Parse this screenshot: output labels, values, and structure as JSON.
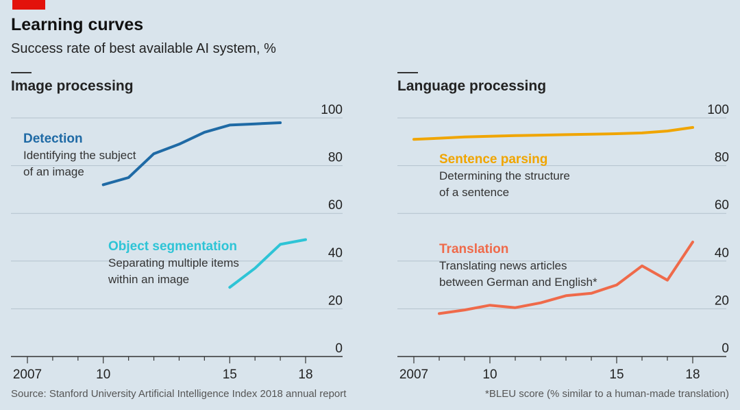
{
  "header": {
    "title": "Learning curves",
    "subtitle": "Success rate of best available AI system, %"
  },
  "footer": {
    "source": "Source: Stanford University Artificial Intelligence Index 2018 annual report",
    "note": "*BLEU score (% similar to a human-made translation)"
  },
  "chart_data": [
    {
      "type": "line",
      "title": "Image processing",
      "x_ticks": [
        {
          "value": 2007,
          "label": "2007"
        },
        {
          "value": 2010,
          "label": "10"
        },
        {
          "value": 2015,
          "label": "15"
        },
        {
          "value": 2018,
          "label": "18"
        }
      ],
      "xlim": [
        2007,
        2018
      ],
      "ylim": [
        0,
        100
      ],
      "y_ticks": [
        0,
        20,
        40,
        60,
        80,
        100
      ],
      "grid": true,
      "series": [
        {
          "name": "Detection",
          "description": [
            "Identifying the subject",
            "of an image"
          ],
          "color": "#1f6aa5",
          "x": [
            2010,
            2011,
            2012,
            2013,
            2014,
            2015,
            2016,
            2017
          ],
          "y": [
            72,
            75,
            85,
            89,
            94,
            97,
            97.5,
            98
          ]
        },
        {
          "name": "Object segmentation",
          "description": [
            "Separating multiple items",
            "within an image"
          ],
          "color": "#2ec4d6",
          "x": [
            2015,
            2016,
            2017,
            2018
          ],
          "y": [
            29,
            37,
            47,
            49
          ]
        }
      ]
    },
    {
      "type": "line",
      "title": "Language processing",
      "x_ticks": [
        {
          "value": 2007,
          "label": "2007"
        },
        {
          "value": 2010,
          "label": "10"
        },
        {
          "value": 2015,
          "label": "15"
        },
        {
          "value": 2018,
          "label": "18"
        }
      ],
      "xlim": [
        2007,
        2018
      ],
      "ylim": [
        0,
        100
      ],
      "y_ticks": [
        0,
        20,
        40,
        60,
        80,
        100
      ],
      "grid": true,
      "series": [
        {
          "name": "Sentence parsing",
          "description": [
            "Determining the structure",
            "of a sentence"
          ],
          "color": "#f0a500",
          "x": [
            2007,
            2008,
            2009,
            2010,
            2011,
            2012,
            2013,
            2014,
            2015,
            2016,
            2017,
            2018
          ],
          "y": [
            91,
            91.5,
            92,
            92.3,
            92.6,
            92.8,
            93,
            93.2,
            93.4,
            93.7,
            94.5,
            96
          ]
        },
        {
          "name": "Translation",
          "description": [
            "Translating news articles",
            "between German and English*"
          ],
          "color": "#ef6a4a",
          "x": [
            2008,
            2009,
            2010,
            2011,
            2012,
            2013,
            2014,
            2015,
            2016,
            2017,
            2018
          ],
          "y": [
            18,
            19.5,
            21.5,
            20.5,
            22.5,
            25.5,
            26.5,
            30,
            38,
            32,
            48
          ]
        }
      ]
    }
  ]
}
